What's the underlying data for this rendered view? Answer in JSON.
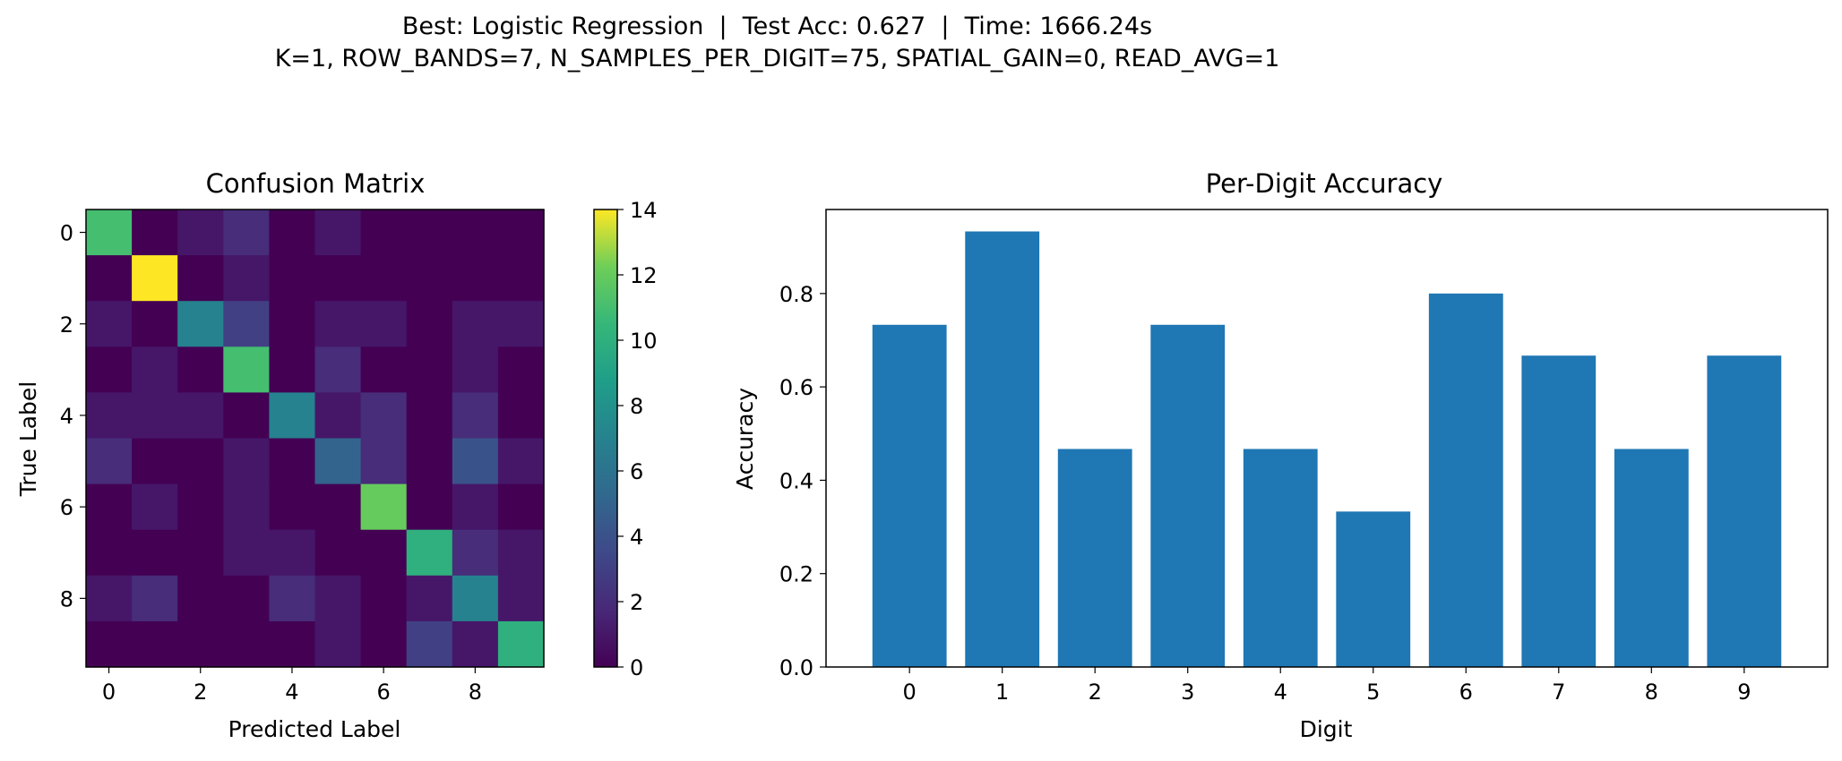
{
  "suptitle": {
    "line1": "Best: Logistic Regression  |  Test Acc: 0.627  |  Time: 1666.24s",
    "line2": "K=1, ROW_BANDS=7, N_SAMPLES_PER_DIGIT=75, SPATIAL_GAIN=0, READ_AVG=1"
  },
  "chart_data": [
    {
      "type": "heatmap",
      "title": "Confusion Matrix",
      "xlabel": "Predicted Label",
      "ylabel": "True Label",
      "x_ticks": [
        "0",
        "2",
        "4",
        "6",
        "8"
      ],
      "y_ticks": [
        "0",
        "2",
        "4",
        "6",
        "8"
      ],
      "colormap": "viridis",
      "colorbar": {
        "min": 0,
        "max": 14,
        "ticks": [
          "0",
          "2",
          "4",
          "6",
          "8",
          "10",
          "12",
          "14"
        ]
      },
      "matrix": [
        [
          11,
          0,
          1,
          2,
          0,
          1,
          0,
          0,
          0,
          0
        ],
        [
          0,
          14,
          0,
          1,
          0,
          0,
          0,
          0,
          0,
          0
        ],
        [
          1,
          0,
          7,
          3,
          0,
          1,
          1,
          0,
          1,
          1
        ],
        [
          0,
          1,
          0,
          11,
          0,
          2,
          0,
          0,
          1,
          0
        ],
        [
          1,
          1,
          1,
          0,
          7,
          1,
          2,
          0,
          2,
          0
        ],
        [
          2,
          0,
          0,
          1,
          0,
          5,
          2,
          0,
          4,
          1
        ],
        [
          0,
          1,
          0,
          1,
          0,
          0,
          12,
          0,
          1,
          0
        ],
        [
          0,
          0,
          0,
          1,
          1,
          0,
          0,
          10,
          2,
          1
        ],
        [
          1,
          2,
          0,
          0,
          2,
          1,
          0,
          1,
          7,
          1
        ],
        [
          0,
          0,
          0,
          0,
          0,
          1,
          0,
          3,
          1,
          10
        ]
      ]
    },
    {
      "type": "bar",
      "title": "Per-Digit Accuracy",
      "xlabel": "Digit",
      "ylabel": "Accuracy",
      "categories": [
        "0",
        "1",
        "2",
        "3",
        "4",
        "5",
        "6",
        "7",
        "8",
        "9"
      ],
      "values": [
        0.733,
        0.933,
        0.467,
        0.733,
        0.467,
        0.333,
        0.8,
        0.667,
        0.467,
        0.667
      ],
      "ylim": [
        0,
        0.98
      ],
      "y_ticks": [
        "0.0",
        "0.2",
        "0.4",
        "0.6",
        "0.8"
      ],
      "bar_color": "#1f77b4"
    }
  ]
}
